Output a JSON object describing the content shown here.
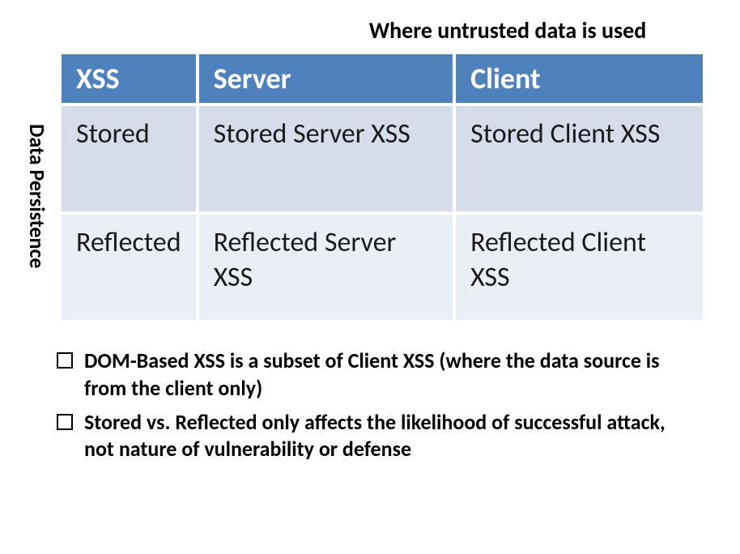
{
  "type": "table",
  "topLabel": "Where untrusted data is used",
  "sideLabel": "Data Persistence",
  "table": {
    "columns": [
      "XSS",
      "Server",
      "Client"
    ],
    "rows": [
      [
        "Stored",
        "Stored Server XSS",
        "Stored Client XSS"
      ],
      [
        "Reflected",
        "Reflected Server XSS",
        "Reflected Client XSS"
      ]
    ],
    "header_bg": "#4f81bd",
    "header_fg": "#ffffff",
    "row_colors": [
      "#d6dcea",
      "#eaeef5"
    ],
    "border_spacing": 4,
    "header_fontsize": 36,
    "cell_fontsize": 34,
    "col_widths_pct": [
      33,
      33,
      34
    ]
  },
  "bullets": [
    "DOM-Based XSS is a subset of Client XSS (where the data source is from the client only)",
    "Stored vs. Reflected only affects the likelihood of successful attack, not nature of vulnerability or defense"
  ],
  "label_fontsize": 28,
  "bullet_fontsize": 26,
  "text_color": "#000000",
  "background_color": "#ffffff"
}
